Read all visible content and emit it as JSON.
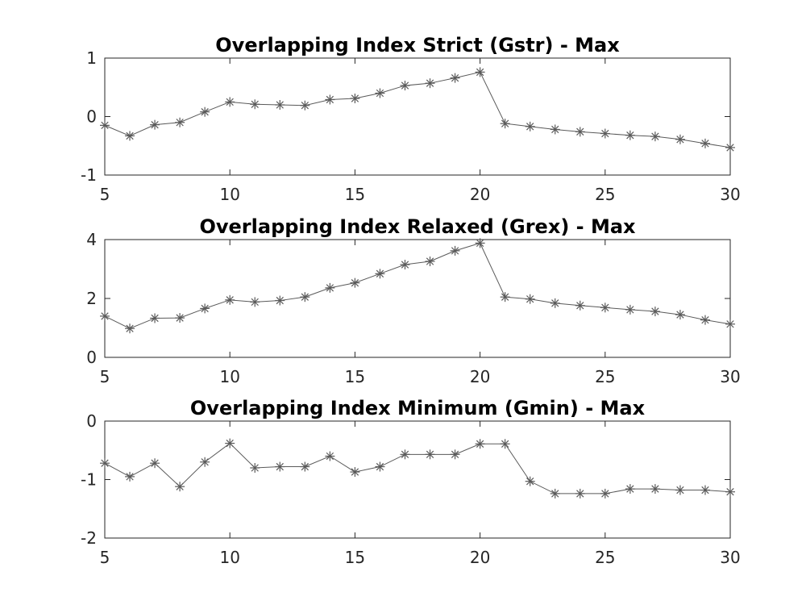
{
  "chart_data": [
    {
      "type": "line",
      "title": "Overlapping Index Strict (Gstr) - Max",
      "xlabel": "",
      "ylabel": "",
      "xlim": [
        5,
        30
      ],
      "ylim": [
        -1,
        1
      ],
      "xticks": [
        5,
        10,
        15,
        20,
        25,
        30
      ],
      "yticks": [
        -1,
        0,
        1
      ],
      "grid": false,
      "color": "#5a5a5a",
      "marker": "asterisk",
      "x": [
        5,
        6,
        7,
        8,
        9,
        10,
        11,
        12,
        13,
        14,
        15,
        16,
        17,
        18,
        19,
        20,
        21,
        22,
        23,
        24,
        25,
        26,
        27,
        28,
        29,
        30
      ],
      "series": [
        {
          "values": [
            -0.15,
            -0.33,
            -0.14,
            -0.1,
            0.08,
            0.25,
            0.21,
            0.2,
            0.19,
            0.29,
            0.31,
            0.4,
            0.53,
            0.57,
            0.66,
            0.76,
            -0.12,
            -0.17,
            -0.22,
            -0.26,
            -0.29,
            -0.32,
            -0.34,
            -0.39,
            -0.46,
            -0.53
          ]
        }
      ]
    },
    {
      "type": "line",
      "title": "Overlapping Index Relaxed (Grex) - Max",
      "xlabel": "",
      "ylabel": "",
      "xlim": [
        5,
        30
      ],
      "ylim": [
        0,
        4
      ],
      "xticks": [
        5,
        10,
        15,
        20,
        25,
        30
      ],
      "yticks": [
        0,
        2,
        4
      ],
      "grid": false,
      "color": "#5a5a5a",
      "marker": "asterisk",
      "x": [
        5,
        6,
        7,
        8,
        9,
        10,
        11,
        12,
        13,
        14,
        15,
        16,
        17,
        18,
        19,
        20,
        21,
        22,
        23,
        24,
        25,
        26,
        27,
        28,
        29,
        30
      ],
      "series": [
        {
          "values": [
            1.4,
            0.98,
            1.33,
            1.34,
            1.66,
            1.95,
            1.88,
            1.93,
            2.05,
            2.36,
            2.53,
            2.84,
            3.15,
            3.26,
            3.62,
            3.88,
            2.05,
            1.98,
            1.84,
            1.76,
            1.69,
            1.62,
            1.56,
            1.45,
            1.27,
            1.13
          ]
        }
      ]
    },
    {
      "type": "line",
      "title": "Overlapping Index Minimum (Gmin) - Max",
      "xlabel": "",
      "ylabel": "",
      "xlim": [
        5,
        30
      ],
      "ylim": [
        -2,
        0
      ],
      "xticks": [
        5,
        10,
        15,
        20,
        25,
        30
      ],
      "yticks": [
        -2,
        -1,
        0
      ],
      "grid": false,
      "color": "#5a5a5a",
      "marker": "asterisk",
      "x": [
        5,
        6,
        7,
        8,
        9,
        10,
        11,
        12,
        13,
        14,
        15,
        16,
        17,
        18,
        19,
        20,
        21,
        22,
        23,
        24,
        25,
        26,
        27,
        28,
        29,
        30
      ],
      "series": [
        {
          "values": [
            -0.72,
            -0.95,
            -0.72,
            -1.12,
            -0.7,
            -0.38,
            -0.8,
            -0.78,
            -0.78,
            -0.6,
            -0.87,
            -0.78,
            -0.57,
            -0.57,
            -0.57,
            -0.39,
            -0.39,
            -1.03,
            -1.24,
            -1.24,
            -1.24,
            -1.16,
            -1.16,
            -1.18,
            -1.18,
            -1.21
          ]
        }
      ]
    }
  ]
}
